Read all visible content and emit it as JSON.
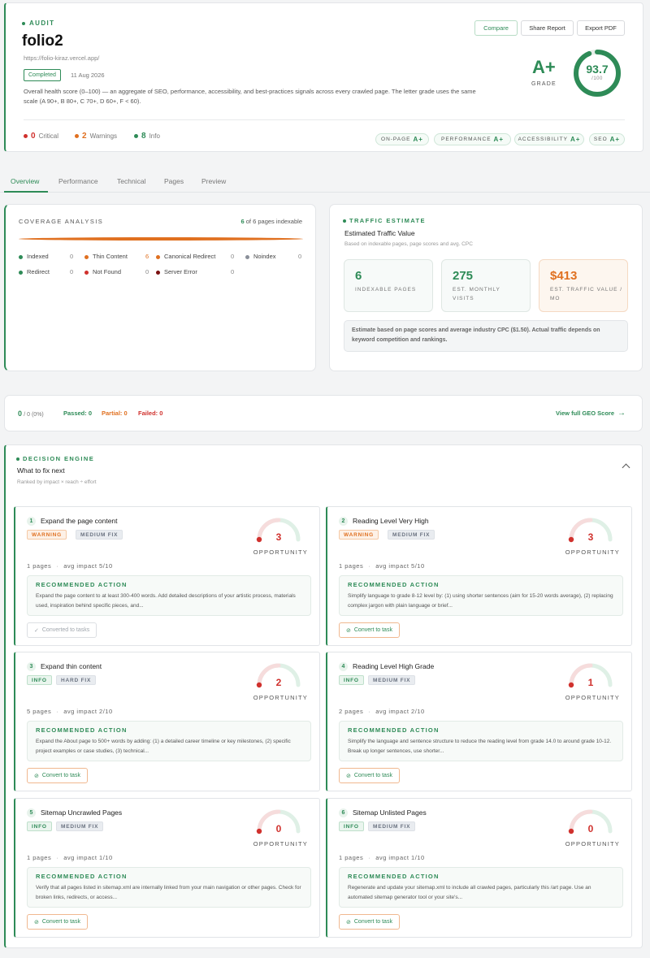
{
  "header": {
    "section_label": "AUDIT",
    "site_name": "folio2",
    "site_url": "https://folio-kiraz.vercel.app/",
    "status": "Completed",
    "date": "11 Aug 2026",
    "description": "Overall health score (0–100) — an aggregate of SEO, performance, accessibility, and best-practices signals across every crawled page. The letter grade uses the same scale (A 90+, B 80+, C 70+, D 60+, F < 60).",
    "buttons": {
      "compare": "Compare",
      "share": "Share Report",
      "export": "Export PDF"
    },
    "grade": "A+",
    "grade_label": "GRADE",
    "score": "93.7",
    "score_max": "/100",
    "score_value": 93.7,
    "counts": {
      "critical": "0",
      "critical_label": "Critical",
      "warnings": "2",
      "warnings_label": "Warnings",
      "info": "8",
      "info_label": "Info"
    },
    "categories": [
      {
        "name": "ON-PAGE",
        "grade": "A+"
      },
      {
        "name": "PERFORMANCE",
        "grade": "A+"
      },
      {
        "name": "ACCESSIBILITY",
        "grade": "A+"
      },
      {
        "name": "SEO",
        "grade": "A+"
      }
    ]
  },
  "tabs": [
    "Overview",
    "Performance",
    "Technical",
    "Pages",
    "Preview"
  ],
  "coverage": {
    "title": "COVERAGE ANALYSIS",
    "indexable_count": "6",
    "indexable_text": "of 6 pages indexable",
    "legend": [
      {
        "label": "Indexed",
        "count": "0",
        "color": "#2e8b57"
      },
      {
        "label": "Thin Content",
        "count": "6",
        "color": "#e07020"
      },
      {
        "label": "Canonical Redirect",
        "count": "0",
        "color": "#e07020"
      },
      {
        "label": "Noindex",
        "count": "0",
        "color": "#8a8f99"
      },
      {
        "label": "Redirect",
        "count": "0",
        "color": "#2e8b57"
      },
      {
        "label": "Not Found",
        "count": "0",
        "color": "#d0312d"
      },
      {
        "label": "Server Error",
        "count": "0",
        "color": "#7a1010"
      }
    ]
  },
  "traffic": {
    "label": "TRAFFIC ESTIMATE",
    "title": "Estimated Traffic Value",
    "subtitle": "Based on indexable pages, page scores and avg. CPC",
    "stats": [
      {
        "value": "6",
        "caption": "INDEXABLE PAGES"
      },
      {
        "value": "275",
        "caption": "EST. MONTHLY VISITS"
      },
      {
        "value": "$413",
        "caption": "EST. TRAFFIC VALUE / MO"
      }
    ],
    "note": "Estimate based on page scores and average industry CPC ($1.50). Actual traffic depends on keyword competition and rankings."
  },
  "geo": {
    "score": "0",
    "score_of": "/ 0 (0%)",
    "passed": "Passed: 0",
    "partial": "Partial: 0",
    "failed": "Failed: 0",
    "link": "View full GEO Score"
  },
  "decision": {
    "label": "DECISION ENGINE",
    "title": "What to fix next",
    "subtitle": "Ranked by impact × reach ÷ effort",
    "issues": [
      {
        "num": "1",
        "title": "Expand the page content",
        "severity": "WARNING",
        "fix": "MEDIUM FIX",
        "opportunity": "3",
        "opportunity_label": "OPPORTUNITY",
        "pages": "1 pages",
        "impact": "avg impact 5/10",
        "rec_label": "RECOMMENDED ACTION",
        "rec": "Expand the page content to at least 300-400 words. Add detailed descriptions of your artistic process, materials used, inspiration behind specific pieces, and...",
        "task": "Converted to tasks"
      },
      {
        "num": "2",
        "title": "Reading Level Very High",
        "severity": "WARNING",
        "fix": "MEDIUM FIX",
        "opportunity": "3",
        "opportunity_label": "OPPORTUNITY",
        "pages": "1 pages",
        "impact": "avg impact 5/10",
        "rec_label": "RECOMMENDED ACTION",
        "rec": "Simplify language to grade 8-12 level by: (1) using shorter sentences (aim for 15-20 words average), (2) replacing complex jargon with plain language or brief...",
        "task": "Convert to task"
      },
      {
        "num": "3",
        "title": "Expand thin content",
        "severity": "INFO",
        "fix": "HARD FIX",
        "opportunity": "2",
        "opportunity_label": "OPPORTUNITY",
        "pages": "5 pages",
        "impact": "avg impact 2/10",
        "rec_label": "RECOMMENDED ACTION",
        "rec": "Expand the About page to 500+ words by adding: (1) a detailed career timeline or key milestones, (2) specific project examples or case studies, (3) technical...",
        "task": "Convert to task"
      },
      {
        "num": "4",
        "title": "Reading Level High Grade",
        "severity": "INFO",
        "fix": "MEDIUM FIX",
        "opportunity": "1",
        "opportunity_label": "OPPORTUNITY",
        "pages": "2 pages",
        "impact": "avg impact 2/10",
        "rec_label": "RECOMMENDED ACTION",
        "rec": "Simplify the language and sentence structure to reduce the reading level from grade 14.0 to around grade 10-12. Break up longer sentences, use shorter...",
        "task": "Convert to task"
      },
      {
        "num": "5",
        "title": "Sitemap Uncrawled Pages",
        "severity": "INFO",
        "fix": "MEDIUM FIX",
        "opportunity": "0",
        "opportunity_label": "OPPORTUNITY",
        "pages": "1 pages",
        "impact": "avg impact 1/10",
        "rec_label": "RECOMMENDED ACTION",
        "rec": "Verify that all pages listed in sitemap.xml are internally linked from your main navigation or other pages. Check for broken links, redirects, or access...",
        "task": "Convert to task"
      },
      {
        "num": "6",
        "title": "Sitemap Unlisted Pages",
        "severity": "INFO",
        "fix": "MEDIUM FIX",
        "opportunity": "0",
        "opportunity_label": "OPPORTUNITY",
        "pages": "1 pages",
        "impact": "avg impact 1/10",
        "rec_label": "RECOMMENDED ACTION",
        "rec": "Regenerate and update your sitemap.xml to include all crawled pages, particularly this /art page. Use an automated sitemap generator tool or your site's...",
        "task": "Convert to task"
      }
    ]
  },
  "colors": {
    "accent": "#2e8b57",
    "warning": "#e07020",
    "critical": "#d0312d"
  }
}
